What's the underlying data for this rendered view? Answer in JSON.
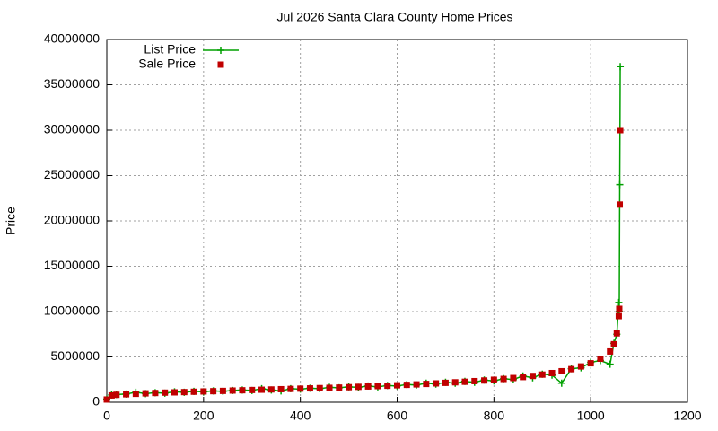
{
  "chart_data": {
    "type": "scatter",
    "title": "Jul 2026 Santa Clara County Home Prices",
    "y_label": "Price",
    "x": [
      0,
      10,
      20,
      40,
      60,
      80,
      100,
      120,
      140,
      160,
      180,
      200,
      220,
      240,
      260,
      280,
      300,
      320,
      340,
      360,
      380,
      400,
      420,
      440,
      460,
      480,
      500,
      520,
      540,
      560,
      580,
      600,
      620,
      640,
      660,
      680,
      700,
      720,
      740,
      760,
      780,
      800,
      820,
      840,
      860,
      880,
      900,
      920,
      940,
      960,
      980,
      1000,
      1020,
      1040,
      1048,
      1054,
      1058,
      1059,
      1060,
      1061
    ],
    "series": [
      {
        "name": "List Price",
        "color": "#00a000",
        "style": "linespoints",
        "values": [
          350000,
          800000,
          850000,
          900000,
          1100000,
          950000,
          1050000,
          1000000,
          1150000,
          1100000,
          1200000,
          1150000,
          1250000,
          1200000,
          1300000,
          1350000,
          1300000,
          1500000,
          1350000,
          1250000,
          1500000,
          1450000,
          1550000,
          1500000,
          1650000,
          1600000,
          1700000,
          1650000,
          1800000,
          1700000,
          1850000,
          1800000,
          1950000,
          1900000,
          2100000,
          2000000,
          2200000,
          2100000,
          2300000,
          2200000,
          2450000,
          2350000,
          2600000,
          2500000,
          2900000,
          2700000,
          3100000,
          3000000,
          2100000,
          3700000,
          3800000,
          4400000,
          4600000,
          4200000,
          6500000,
          7500000,
          11000000,
          10000000,
          24000000,
          37000000
        ]
      },
      {
        "name": "Sale Price",
        "color": "#c00000",
        "style": "points",
        "values": [
          300000,
          750000,
          820000,
          880000,
          930000,
          980000,
          1020000,
          1060000,
          1090000,
          1120000,
          1160000,
          1190000,
          1220000,
          1250000,
          1290000,
          1320000,
          1350000,
          1380000,
          1410000,
          1440000,
          1470000,
          1500000,
          1530000,
          1560000,
          1590000,
          1620000,
          1660000,
          1700000,
          1740000,
          1780000,
          1820000,
          1870000,
          1920000,
          1970000,
          2020000,
          2080000,
          2140000,
          2200000,
          2260000,
          2330000,
          2400000,
          2480000,
          2570000,
          2670000,
          2780000,
          2900000,
          3050000,
          3220000,
          3420000,
          3650000,
          3950000,
          4300000,
          4800000,
          5600000,
          6400000,
          7600000,
          9500000,
          10300000,
          21800000,
          30000000
        ]
      }
    ],
    "xlim": [
      0,
      1200
    ],
    "xticks": [
      0,
      200,
      400,
      600,
      800,
      1000,
      1200
    ],
    "ylim": [
      0,
      40000000
    ],
    "yticks": [
      0,
      5000000,
      10000000,
      15000000,
      20000000,
      25000000,
      30000000,
      35000000,
      40000000
    ],
    "grid": true,
    "legend": "top-left"
  }
}
